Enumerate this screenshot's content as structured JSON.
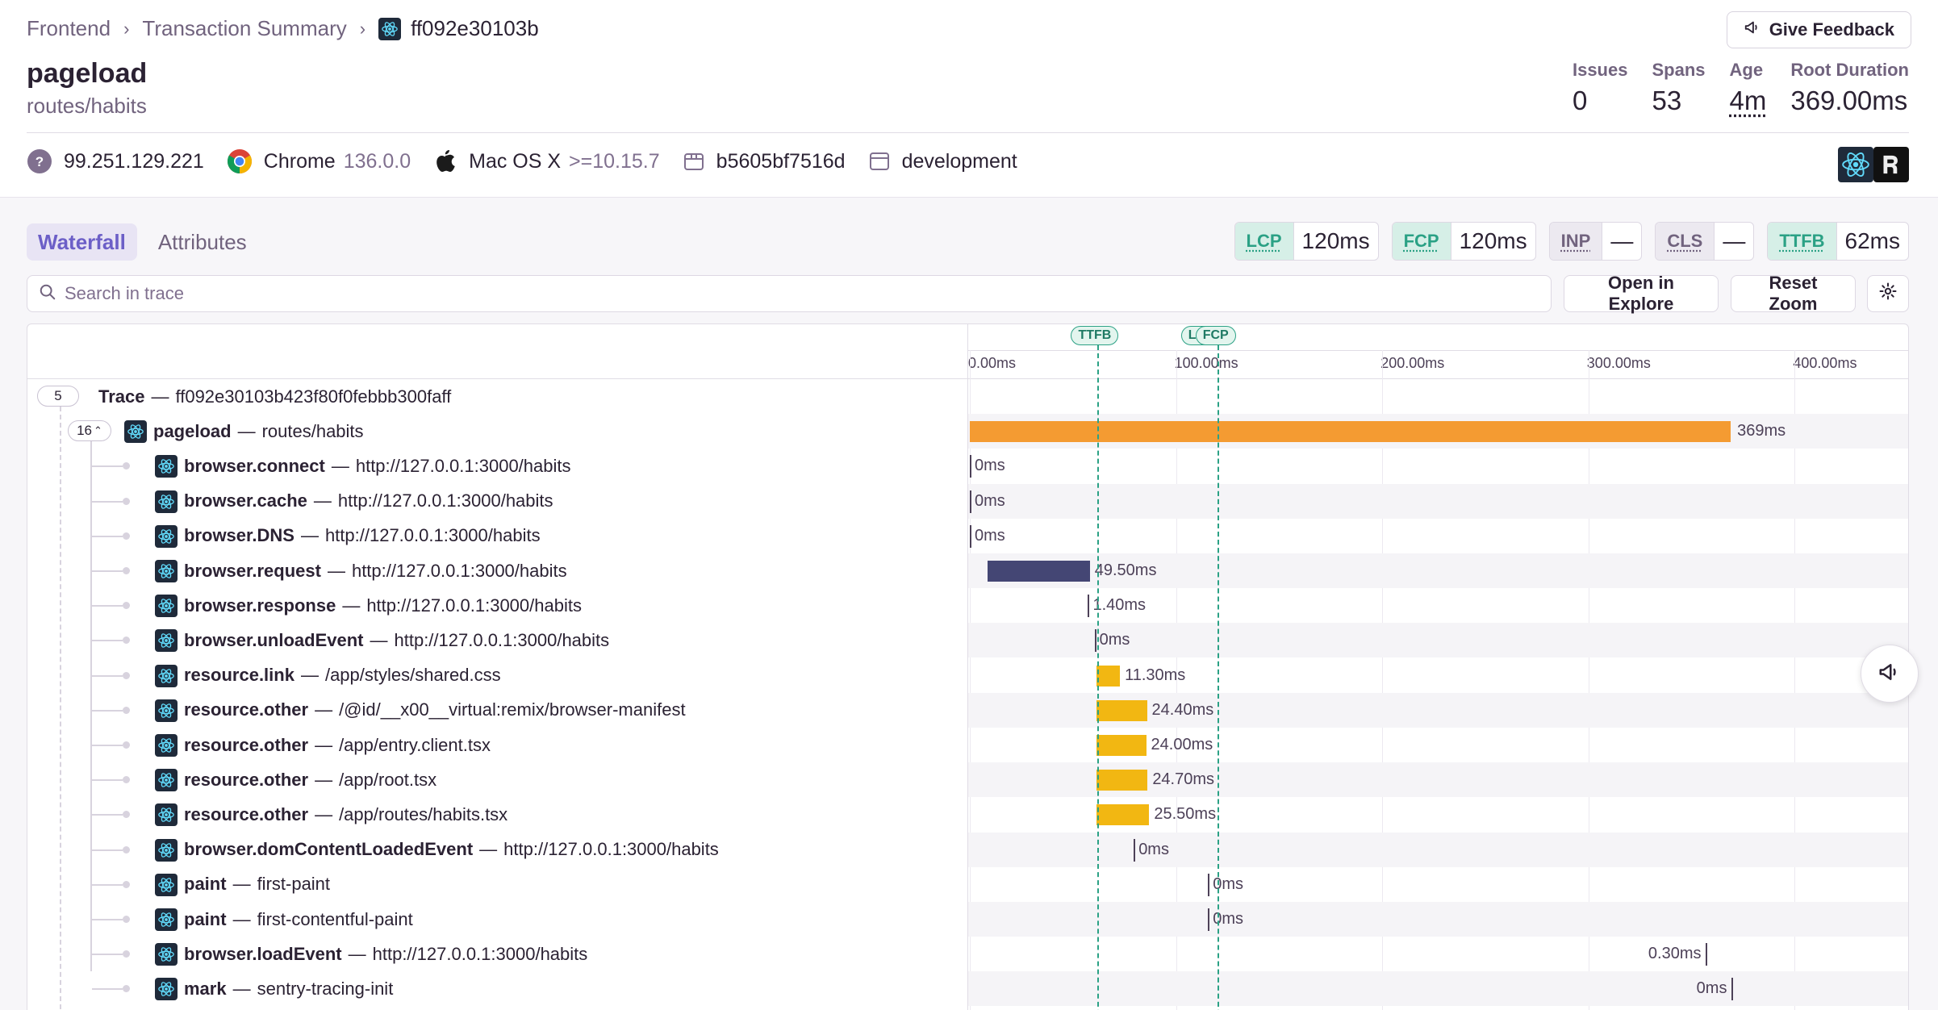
{
  "breadcrumb": {
    "items": [
      "Frontend",
      "Transaction Summary"
    ],
    "current": "ff092e30103b"
  },
  "feedback_label": "Give Feedback",
  "header": {
    "title": "pageload",
    "subtitle": "routes/habits"
  },
  "stats": [
    {
      "label": "Issues",
      "value": "0"
    },
    {
      "label": "Spans",
      "value": "53"
    },
    {
      "label": "Age",
      "value": "4m"
    },
    {
      "label": "Root Duration",
      "value": "369.00ms"
    }
  ],
  "tags": {
    "ip": "99.251.129.221",
    "browser": "Chrome",
    "browser_version": "136.0.0",
    "os": "Mac OS X",
    "os_version": ">=10.15.7",
    "release": "b5605bf7516d",
    "environment": "development"
  },
  "tabs": [
    "Waterfall",
    "Attributes"
  ],
  "vitals": [
    {
      "key": "LCP",
      "value": "120ms",
      "status": "good"
    },
    {
      "key": "FCP",
      "value": "120ms",
      "status": "good"
    },
    {
      "key": "INP",
      "value": "—",
      "status": "none"
    },
    {
      "key": "CLS",
      "value": "—",
      "status": "none"
    },
    {
      "key": "TTFB",
      "value": "62ms",
      "status": "good"
    }
  ],
  "search": {
    "placeholder": "Search in trace"
  },
  "buttons": {
    "open_explore": "Open in Explore",
    "reset_zoom": "Reset Zoom"
  },
  "timeline": {
    "ticks": [
      "0.00ms",
      "100.00ms",
      "200.00ms",
      "300.00ms",
      "400.00ms"
    ],
    "markers": [
      {
        "label": "TTFB",
        "at_ms": 62
      },
      {
        "label": "LCP",
        "at_ms": 120
      },
      {
        "label": "FCP",
        "at_ms": 120
      }
    ]
  },
  "trace": {
    "root_badge": "5",
    "root_name": "Trace",
    "root_id": "ff092e30103b423f80f0febbb300faff",
    "txn_badge": "16",
    "txn_op": "pageload",
    "txn_desc": "routes/habits",
    "txn_duration": "369ms",
    "txn_start_ms": 0,
    "txn_dur_ms": 369
  },
  "colors": {
    "pageload": "#f49b32",
    "browser": "#444674",
    "resource": "#f2b712",
    "accent": "#6c5fc7",
    "good": "#2ba185"
  },
  "spans": [
    {
      "op": "browser.connect",
      "desc": "http://127.0.0.1:3000/habits",
      "start": 0,
      "dur": 0,
      "label": "0ms",
      "kind": "thin"
    },
    {
      "op": "browser.cache",
      "desc": "http://127.0.0.1:3000/habits",
      "start": 0,
      "dur": 0,
      "label": "0ms",
      "kind": "thin"
    },
    {
      "op": "browser.DNS",
      "desc": "http://127.0.0.1:3000/habits",
      "start": 0,
      "dur": 0,
      "label": "0ms",
      "kind": "thin"
    },
    {
      "op": "browser.request",
      "desc": "http://127.0.0.1:3000/habits",
      "start": 8.7,
      "dur": 49.5,
      "label": "49.50ms",
      "kind": "browser"
    },
    {
      "op": "browser.response",
      "desc": "http://127.0.0.1:3000/habits",
      "start": 57.3,
      "dur": 1.4,
      "label": "1.40ms",
      "kind": "thin"
    },
    {
      "op": "browser.unloadEvent",
      "desc": "http://127.0.0.1:3000/habits",
      "start": 60.5,
      "dur": 0,
      "label": "0ms",
      "kind": "thin"
    },
    {
      "op": "resource.link",
      "desc": "/app/styles/shared.css",
      "start": 61.5,
      "dur": 11.3,
      "label": "11.30ms",
      "kind": "resource"
    },
    {
      "op": "resource.other",
      "desc": "/@id/__x00__virtual:remix/browser-manifest",
      "start": 61.5,
      "dur": 24.4,
      "label": "24.40ms",
      "kind": "resource"
    },
    {
      "op": "resource.other",
      "desc": "/app/entry.client.tsx",
      "start": 61.5,
      "dur": 24.0,
      "label": "24.00ms",
      "kind": "resource"
    },
    {
      "op": "resource.other",
      "desc": "/app/root.tsx",
      "start": 61.5,
      "dur": 24.7,
      "label": "24.70ms",
      "kind": "resource"
    },
    {
      "op": "resource.other",
      "desc": "/app/routes/habits.tsx",
      "start": 61.5,
      "dur": 25.5,
      "label": "25.50ms",
      "kind": "resource"
    },
    {
      "op": "browser.domContentLoadedEvent",
      "desc": "http://127.0.0.1:3000/habits",
      "start": 79.5,
      "dur": 0,
      "label": "0ms",
      "kind": "thin"
    },
    {
      "op": "paint",
      "desc": "first-paint",
      "start": 115.5,
      "dur": 0,
      "label": "0ms",
      "kind": "thin"
    },
    {
      "op": "paint",
      "desc": "first-contentful-paint",
      "start": 115.5,
      "dur": 0,
      "label": "0ms",
      "kind": "thin"
    },
    {
      "op": "browser.loadEvent",
      "desc": "http://127.0.0.1:3000/habits",
      "start": 357,
      "dur": 0.3,
      "label": "0.30ms",
      "kind": "thin",
      "label_left": true
    },
    {
      "op": "mark",
      "desc": "sentry-tracing-init",
      "start": 369.5,
      "dur": 0,
      "label": "0ms",
      "kind": "thin",
      "label_left": true
    }
  ]
}
